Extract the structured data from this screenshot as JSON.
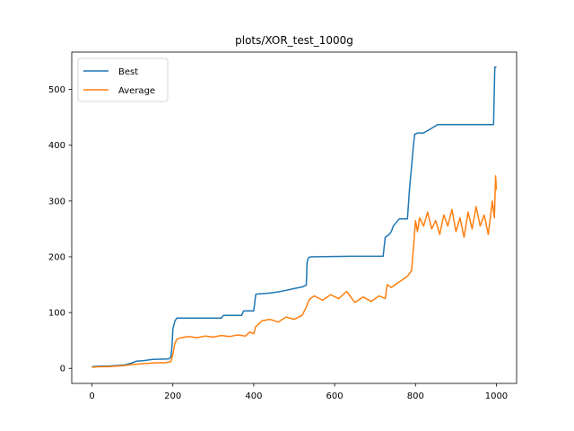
{
  "chart_data": {
    "type": "line",
    "title": "plots/XOR_test_1000g",
    "xlabel": "",
    "ylabel": "",
    "xlim": [
      -50,
      1050
    ],
    "ylim": [
      -27,
      567
    ],
    "xticks": [
      0,
      200,
      400,
      600,
      800,
      1000
    ],
    "yticks": [
      0,
      100,
      200,
      300,
      400,
      500
    ],
    "grid": false,
    "legend_position": "top-left",
    "series": [
      {
        "name": "Best",
        "color": "#1f77b4",
        "x": [
          0,
          20,
          40,
          60,
          80,
          90,
          100,
          110,
          130,
          140,
          150,
          190,
          195,
          198,
          200,
          205,
          210,
          320,
          325,
          370,
          375,
          400,
          405,
          440,
          460,
          480,
          500,
          520,
          530,
          532,
          535,
          540,
          640,
          720,
          725,
          735,
          740,
          745,
          760,
          780,
          785,
          790,
          795,
          798,
          800,
          805,
          820,
          855,
          900,
          950,
          993,
          996,
          1000
        ],
        "y": [
          3,
          4,
          4,
          5,
          6,
          8,
          10,
          13,
          14,
          15,
          16,
          17,
          20,
          40,
          70,
          85,
          90,
          90,
          95,
          95,
          103,
          103,
          133,
          135,
          137,
          140,
          143,
          146,
          149,
          190,
          198,
          200,
          201,
          201,
          235,
          240,
          245,
          255,
          268,
          268,
          320,
          360,
          400,
          420,
          420,
          422,
          422,
          437,
          437,
          437,
          437,
          540,
          540
        ]
      },
      {
        "name": "Average",
        "color": "#ff7f0e",
        "x": [
          0,
          20,
          40,
          60,
          80,
          100,
          120,
          140,
          160,
          180,
          195,
          200,
          205,
          210,
          220,
          240,
          260,
          280,
          300,
          320,
          340,
          360,
          380,
          390,
          400,
          405,
          410,
          420,
          440,
          460,
          480,
          500,
          520,
          530,
          535,
          540,
          550,
          570,
          590,
          610,
          630,
          650,
          670,
          690,
          710,
          725,
          730,
          740,
          760,
          780,
          790,
          795,
          800,
          805,
          810,
          820,
          830,
          840,
          850,
          860,
          870,
          880,
          890,
          900,
          910,
          920,
          930,
          940,
          950,
          960,
          970,
          980,
          990,
          995,
          998,
          1000
        ],
        "y": [
          2,
          3,
          3,
          4,
          5,
          7,
          8,
          9,
          10,
          10,
          12,
          25,
          45,
          52,
          55,
          57,
          55,
          58,
          56,
          59,
          57,
          60,
          58,
          65,
          62,
          75,
          78,
          85,
          88,
          83,
          92,
          88,
          95,
          110,
          120,
          125,
          130,
          122,
          132,
          125,
          138,
          118,
          128,
          120,
          130,
          125,
          150,
          145,
          155,
          165,
          175,
          215,
          265,
          245,
          270,
          255,
          280,
          250,
          265,
          240,
          275,
          255,
          285,
          245,
          270,
          235,
          280,
          250,
          290,
          255,
          275,
          240,
          300,
          270,
          345,
          320
        ]
      }
    ]
  }
}
